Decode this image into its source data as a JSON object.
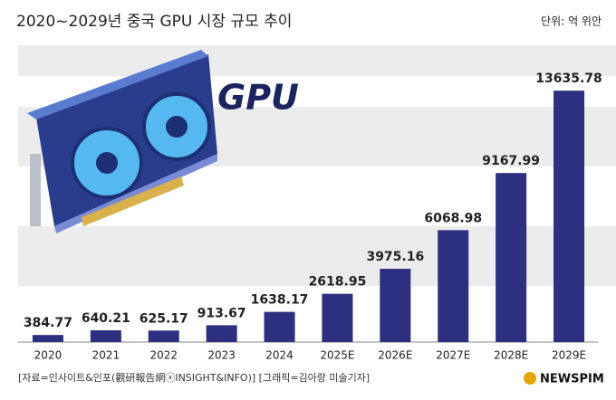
{
  "chart_data": {
    "type": "bar",
    "title": "2020~2029년 중국 GPU 시장 규모 추이",
    "unit": "단위: 억 위안",
    "categories": [
      "2020",
      "2021",
      "2022",
      "2023",
      "2024",
      "2025E",
      "2026E",
      "2027E",
      "2028E",
      "2029E"
    ],
    "values": [
      384.77,
      640.21,
      625.17,
      913.67,
      1638.17,
      2618.95,
      3975.16,
      6068.98,
      9167.99,
      13635.78
    ],
    "color": "#2d2f80",
    "ylim": [
      0,
      16000
    ],
    "illustration_label": "GPU",
    "source": "[자료=인사이트&인포(觀研報告網ⓧINSIGHT&INFO)] [그래픽=김아랑 미술기자]",
    "logo": "NEWSPIM"
  }
}
